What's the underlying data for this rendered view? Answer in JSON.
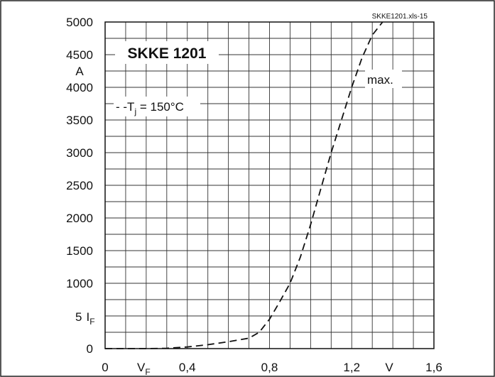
{
  "chart_data": {
    "type": "line",
    "title": "SKKE 1201",
    "source_label": "SKKE1201.xls-15",
    "xlabel": "V_F",
    "x_unit": "V",
    "ylabel": "I_F",
    "y_unit": "A",
    "y_label_prefix": "5",
    "x_ticks": [
      0,
      0.4,
      0.8,
      1.2,
      1.6
    ],
    "x_tick_labels": [
      "0",
      "0,4",
      "0,8",
      "1,2",
      "1,6"
    ],
    "y_ticks": [
      0,
      500,
      1000,
      1500,
      2000,
      2500,
      3000,
      3500,
      4000,
      4500,
      5000
    ],
    "y_tick_labels": [
      "0",
      "500",
      "1000",
      "1500",
      "2000",
      "2500",
      "3000",
      "3500",
      "4000",
      "4500",
      "5000"
    ],
    "xlim": [
      0,
      1.6
    ],
    "ylim": [
      0,
      5000
    ],
    "grid": true,
    "annotations": {
      "condition_prefix": "- -",
      "condition_symbol": "T",
      "condition_sub": "j",
      "condition_value": " = 150°C",
      "curve_label": "max."
    },
    "series": [
      {
        "name": "max.",
        "style": "dashed",
        "x": [
          0,
          0.1,
          0.2,
          0.3,
          0.4,
          0.5,
          0.6,
          0.7,
          0.75,
          0.8,
          0.85,
          0.9,
          0.95,
          1.0,
          1.05,
          1.1,
          1.15,
          1.2,
          1.25,
          1.3,
          1.35
        ],
        "y": [
          0,
          0,
          0,
          5,
          25,
          60,
          105,
          160,
          250,
          450,
          720,
          1000,
          1400,
          1900,
          2450,
          3000,
          3500,
          4000,
          4450,
          4800,
          5000
        ]
      }
    ]
  }
}
